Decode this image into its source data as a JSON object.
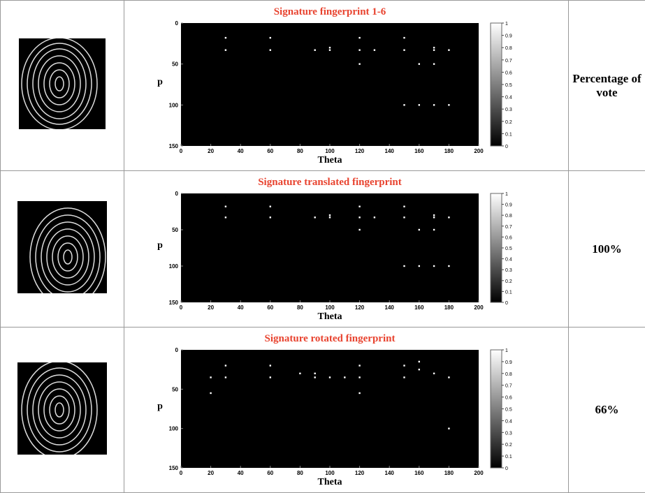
{
  "table": {
    "rows": [
      {
        "right_cell": "Percentage of vote",
        "chart": {
          "type": "scatter",
          "title": "Signature fingerprint 1-6",
          "xlabel": "Theta",
          "ylabel": "p",
          "xlim": [
            0,
            200
          ],
          "xticks": [
            0,
            20,
            40,
            60,
            80,
            100,
            120,
            140,
            160,
            180,
            200
          ],
          "ylim": [
            0,
            150
          ],
          "yticks": [
            0,
            50,
            100,
            150
          ],
          "y_inverted": true,
          "background": "#000000",
          "color": "#ffffff",
          "title_color": "#e8432f",
          "clim": [
            0,
            1
          ],
          "cticks": [
            0,
            0.1,
            0.2,
            0.3,
            0.4,
            0.5,
            0.6,
            0.7,
            0.8,
            0.9,
            1
          ],
          "x": [
            30,
            30,
            60,
            60,
            90,
            100,
            100,
            120,
            120,
            120,
            130,
            150,
            150,
            150,
            160,
            160,
            170,
            170,
            170,
            170,
            180,
            180
          ],
          "y": [
            18,
            33,
            18,
            33,
            33,
            30,
            33,
            18,
            33,
            50,
            33,
            18,
            33,
            100,
            50,
            100,
            30,
            33,
            50,
            100,
            33,
            100
          ]
        }
      },
      {
        "right_cell": "100%",
        "chart": {
          "type": "scatter",
          "title": "Signature translated fingerprint",
          "xlabel": "Theta",
          "ylabel": "p",
          "xlim": [
            0,
            200
          ],
          "xticks": [
            0,
            20,
            40,
            60,
            80,
            100,
            120,
            140,
            160,
            180,
            200
          ],
          "ylim": [
            0,
            150
          ],
          "yticks": [
            0,
            50,
            100,
            150
          ],
          "y_inverted": true,
          "background": "#000000",
          "color": "#ffffff",
          "title_color": "#e8432f",
          "clim": [
            0,
            1
          ],
          "cticks": [
            0,
            0.1,
            0.2,
            0.3,
            0.4,
            0.5,
            0.6,
            0.7,
            0.8,
            0.9,
            1
          ],
          "x": [
            30,
            30,
            60,
            60,
            90,
            100,
            100,
            120,
            120,
            120,
            130,
            150,
            150,
            150,
            160,
            160,
            170,
            170,
            170,
            170,
            180,
            180
          ],
          "y": [
            18,
            33,
            18,
            33,
            33,
            30,
            33,
            18,
            33,
            50,
            33,
            18,
            33,
            100,
            50,
            100,
            30,
            33,
            50,
            100,
            33,
            100
          ]
        }
      },
      {
        "right_cell": "66%",
        "chart": {
          "type": "scatter",
          "title": "Signature rotated fingerprint",
          "xlabel": "Theta",
          "ylabel": "p",
          "xlim": [
            0,
            200
          ],
          "xticks": [
            0,
            20,
            40,
            60,
            80,
            100,
            120,
            140,
            160,
            180,
            200
          ],
          "ylim": [
            0,
            150
          ],
          "yticks": [
            0,
            50,
            100,
            150
          ],
          "y_inverted": true,
          "background": "#000000",
          "color": "#ffffff",
          "title_color": "#e8432f",
          "clim": [
            0,
            1
          ],
          "cticks": [
            0,
            0.1,
            0.2,
            0.3,
            0.4,
            0.5,
            0.6,
            0.7,
            0.8,
            0.9,
            1
          ],
          "x": [
            20,
            20,
            30,
            30,
            60,
            60,
            80,
            90,
            90,
            100,
            110,
            120,
            120,
            120,
            150,
            150,
            160,
            160,
            170,
            180,
            180
          ],
          "y": [
            35,
            55,
            20,
            35,
            20,
            35,
            30,
            30,
            35,
            35,
            35,
            20,
            35,
            55,
            20,
            35,
            15,
            25,
            30,
            35,
            100
          ]
        }
      }
    ]
  }
}
